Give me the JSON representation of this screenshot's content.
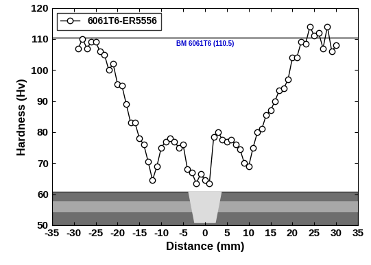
{
  "chart_data": {
    "type": "line",
    "x_label": "Distance (mm)",
    "y_label": "Hardness (Hv)",
    "series": [
      {
        "name": "6061T6-ER5556",
        "color": "#000000",
        "marker": "circle",
        "line_style": "solid",
        "x": [
          -29,
          -28,
          -27,
          -26,
          -25,
          -24,
          -23,
          -22,
          -21,
          -20,
          -19,
          -18,
          -17,
          -16,
          -15,
          -14,
          -13,
          -12,
          -11,
          -10,
          -9,
          -8,
          -7,
          -6,
          -5,
          -4,
          -3,
          -2,
          -1,
          0,
          1,
          2,
          3,
          4,
          5,
          6,
          7,
          8,
          9,
          10,
          11,
          12,
          13,
          14,
          15,
          16,
          17,
          18,
          19,
          20,
          21,
          22,
          23,
          24,
          25,
          26,
          27,
          28,
          29,
          30
        ],
        "values": [
          107,
          110,
          107,
          109,
          109,
          106,
          105,
          100,
          102,
          95.5,
          95,
          89,
          83,
          83,
          78,
          76,
          70.5,
          64.5,
          69,
          75,
          77,
          78,
          77,
          75,
          76,
          68,
          67,
          63.5,
          66.5,
          64.5,
          63.5,
          78.5,
          80,
          77.5,
          77,
          77.5,
          76,
          74.5,
          70,
          69,
          75,
          80,
          81,
          85.5,
          87,
          90,
          93.5,
          94,
          97,
          104,
          104,
          109,
          108.5,
          114,
          111,
          112,
          107,
          114,
          106,
          108
        ]
      }
    ],
    "reference_line": {
      "value": 110.5,
      "label": "BM 6061T6 (110.5)",
      "color": "#0000cc"
    },
    "xlim": [
      -35,
      35
    ],
    "xticks": [
      -35,
      -30,
      -25,
      -20,
      -15,
      -10,
      -5,
      0,
      5,
      10,
      15,
      20,
      25,
      30,
      35
    ],
    "ylim": [
      50,
      120
    ],
    "yticks": [
      50,
      60,
      70,
      80,
      90,
      100,
      110,
      120
    ],
    "grid": false,
    "legend": "upper left"
  }
}
